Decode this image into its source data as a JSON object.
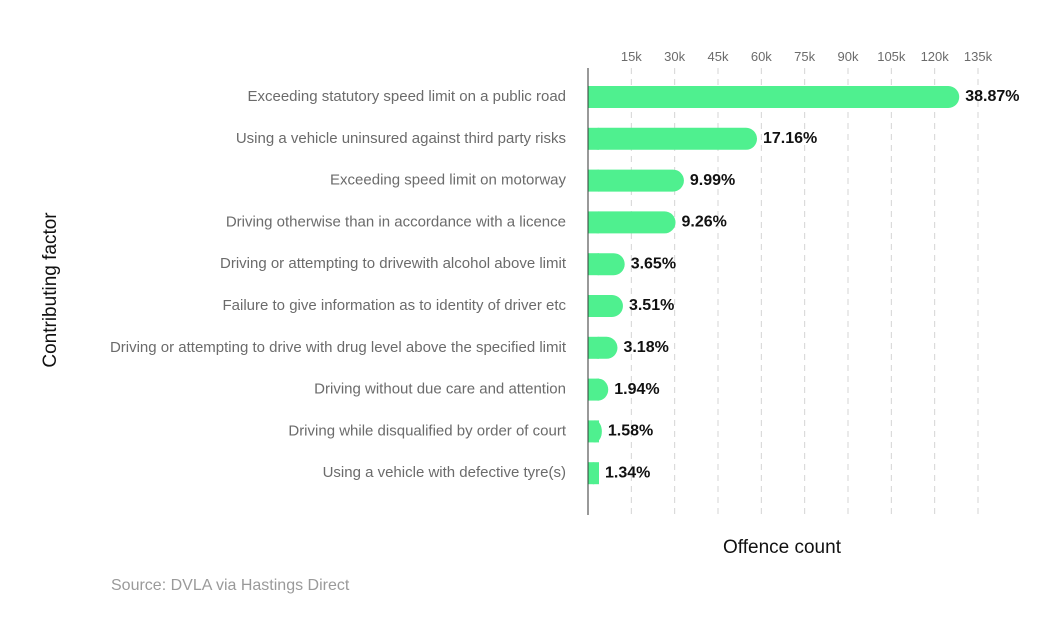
{
  "chart_data": {
    "type": "bar",
    "orientation": "horizontal",
    "xlabel": "Offence count",
    "ylabel": "Contributing factor",
    "xlim": [
      0,
      137000
    ],
    "x_ticks": [
      15000,
      30000,
      45000,
      60000,
      75000,
      90000,
      105000,
      120000,
      135000
    ],
    "x_tick_labels": [
      "15k",
      "30k",
      "45k",
      "60k",
      "75k",
      "90k",
      "105k",
      "120k",
      "135k"
    ],
    "grid": "vertical-dashed",
    "categories": [
      "Exceeding statutory speed limit on a public road",
      "Using a vehicle uninsured against third party risks",
      "Exceeding speed limit on motorway",
      "Driving otherwise than in accordance with a licence",
      "Driving or attempting to drivewith alcohol above limit",
      "Failure to give information as to identity of driver etc",
      "Driving or attempting to drive with drug level above the specified limit",
      "Driving without due care and attention",
      "Driving while disqualified by order of court",
      "Using a vehicle with defective tyre(s)"
    ],
    "values": [
      128500,
      58500,
      33200,
      30300,
      12700,
      12100,
      10200,
      7000,
      4800,
      3700
    ],
    "value_labels": [
      "38.87%",
      "17.16%",
      "9.99%",
      "9.26%",
      "3.65%",
      "3.51%",
      "3.18%",
      "1.94%",
      "1.58%",
      "1.34%"
    ],
    "bar_color": "#4ff08f",
    "source": "Source: DVLA via Hastings Direct"
  }
}
